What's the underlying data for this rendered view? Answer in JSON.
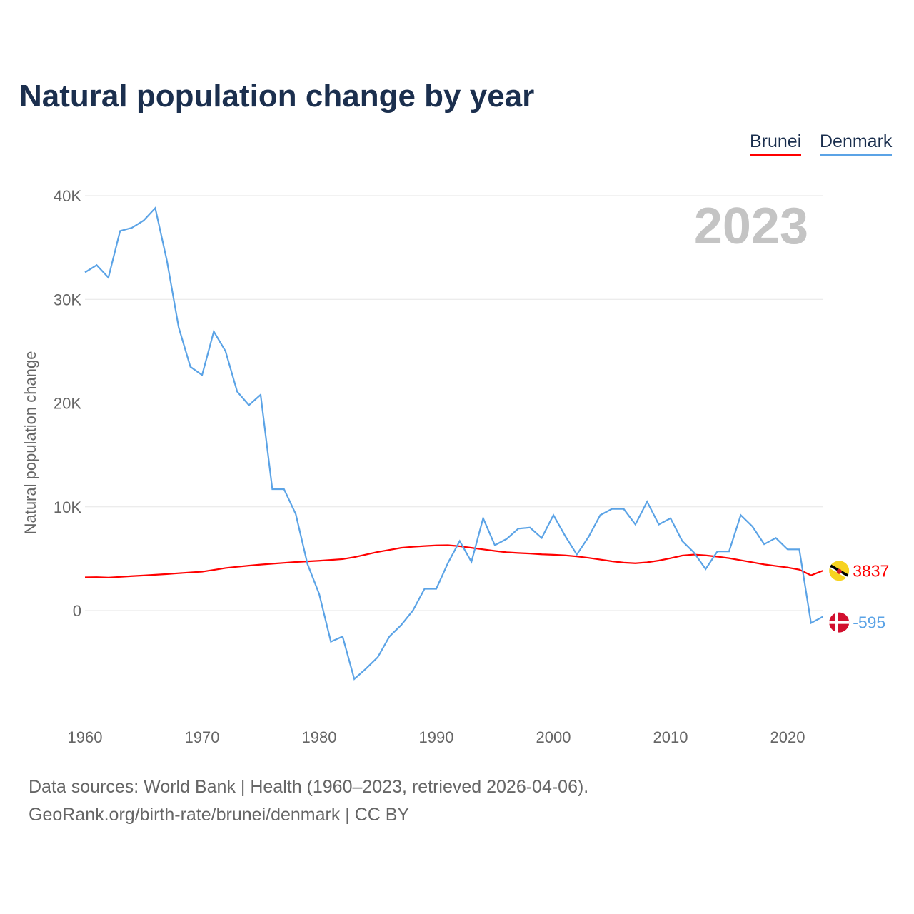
{
  "title": "Natural population change by year",
  "legend": [
    {
      "label": "Brunei",
      "color": "#ff0000"
    },
    {
      "label": "Denmark",
      "color": "#5ba3e6"
    }
  ],
  "footer": {
    "source": "Data sources: World Bank | Health (1960–2023, retrieved 2026-04-06).",
    "link": "GeoRank.org/birth-rate/brunei/denmark | CC BY"
  },
  "chart_data": {
    "type": "line",
    "title": "Natural population change by year",
    "ylabel": "Natural population change",
    "xlabel": "",
    "year_label": "2023",
    "xlim": [
      1960,
      2023
    ],
    "ylim": [
      -10000,
      40000
    ],
    "x_ticks": [
      1960,
      1970,
      1980,
      1990,
      2000,
      2010,
      2020
    ],
    "y_ticks": [
      {
        "v": 0,
        "label": "0"
      },
      {
        "v": 10000,
        "label": "10K"
      },
      {
        "v": 20000,
        "label": "20K"
      },
      {
        "v": 30000,
        "label": "30K"
      },
      {
        "v": 40000,
        "label": "40K"
      }
    ],
    "x_start": 1960,
    "series": [
      {
        "name": "Brunei",
        "color": "#ff0000",
        "end_label": "3837",
        "flag": "brunei-flag",
        "values": [
          3200,
          3220,
          3180,
          3250,
          3320,
          3380,
          3450,
          3520,
          3600,
          3680,
          3750,
          3920,
          4100,
          4220,
          4330,
          4430,
          4520,
          4600,
          4680,
          4740,
          4800,
          4880,
          4960,
          5150,
          5400,
          5650,
          5850,
          6050,
          6150,
          6220,
          6280,
          6300,
          6200,
          6050,
          5900,
          5750,
          5620,
          5550,
          5500,
          5420,
          5380,
          5320,
          5220,
          5080,
          4920,
          4750,
          4620,
          4560,
          4650,
          4820,
          5050,
          5300,
          5400,
          5320,
          5200,
          5050,
          4850,
          4650,
          4450,
          4300,
          4150,
          3950,
          3400,
          3837
        ]
      },
      {
        "name": "Denmark",
        "color": "#5ba3e6",
        "end_label": "-595",
        "flag": "denmark-flag",
        "values": [
          32600,
          33300,
          32100,
          36600,
          36900,
          37600,
          38800,
          33700,
          27300,
          23500,
          22700,
          26900,
          25000,
          21100,
          19800,
          20800,
          11700,
          11700,
          9300,
          4500,
          1600,
          -3000,
          -2500,
          -6600,
          -5600,
          -4500,
          -2500,
          -1400,
          0,
          2100,
          2100,
          4600,
          6700,
          4700,
          8900,
          6300,
          6900,
          7900,
          8000,
          7000,
          9200,
          7200,
          5400,
          7100,
          9200,
          9800,
          9800,
          8300,
          10500,
          8300,
          8900,
          6700,
          5600,
          4000,
          5700,
          5700,
          9200,
          8100,
          6400,
          7000,
          5900,
          5900,
          -1200,
          -595
        ]
      }
    ]
  }
}
